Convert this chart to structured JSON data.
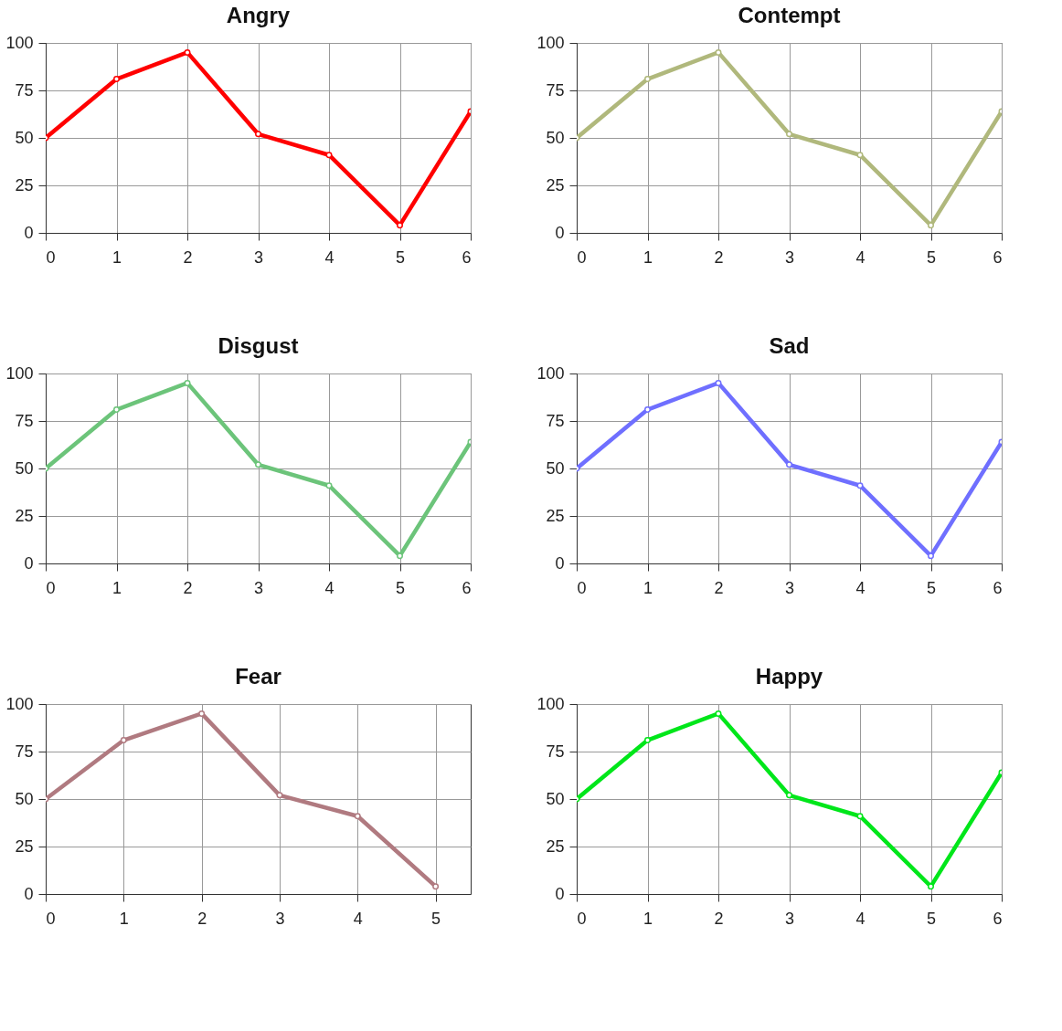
{
  "chart_data": [
    {
      "type": "line",
      "title": "Angry",
      "x": [
        0,
        1,
        2,
        3,
        4,
        5,
        6
      ],
      "xlim": [
        0,
        6
      ],
      "xticks": [
        0,
        1,
        2,
        3,
        4,
        5,
        6
      ],
      "ylim": [
        0,
        100
      ],
      "yticks": [
        0,
        25,
        50,
        75,
        100
      ],
      "grid": true,
      "marker": "circle",
      "series": [
        {
          "color": "#ff0000",
          "values": [
            50,
            81,
            95,
            52,
            41,
            4,
            64
          ]
        }
      ]
    },
    {
      "type": "line",
      "title": "Contempt",
      "x": [
        0,
        1,
        2,
        3,
        4,
        5,
        6
      ],
      "xlim": [
        0,
        6
      ],
      "xticks": [
        0,
        1,
        2,
        3,
        4,
        5,
        6
      ],
      "ylim": [
        0,
        100
      ],
      "yticks": [
        0,
        25,
        50,
        75,
        100
      ],
      "grid": true,
      "marker": "circle",
      "series": [
        {
          "color": "#b0b87c",
          "values": [
            50,
            81,
            95,
            52,
            41,
            4,
            64
          ]
        }
      ]
    },
    {
      "type": "line",
      "title": "Disgust",
      "x": [
        0,
        1,
        2,
        3,
        4,
        5,
        6
      ],
      "xlim": [
        0,
        6
      ],
      "xticks": [
        0,
        1,
        2,
        3,
        4,
        5,
        6
      ],
      "ylim": [
        0,
        100
      ],
      "yticks": [
        0,
        25,
        50,
        75,
        100
      ],
      "grid": true,
      "marker": "circle",
      "series": [
        {
          "color": "#6cc47a",
          "values": [
            50,
            81,
            95,
            52,
            41,
            4,
            64
          ]
        }
      ]
    },
    {
      "type": "line",
      "title": "Sad",
      "x": [
        0,
        1,
        2,
        3,
        4,
        5,
        6
      ],
      "xlim": [
        0,
        6
      ],
      "xticks": [
        0,
        1,
        2,
        3,
        4,
        5,
        6
      ],
      "ylim": [
        0,
        100
      ],
      "yticks": [
        0,
        25,
        50,
        75,
        100
      ],
      "grid": true,
      "marker": "circle",
      "series": [
        {
          "color": "#6f6fff",
          "values": [
            50,
            81,
            95,
            52,
            41,
            4,
            64
          ]
        }
      ]
    },
    {
      "type": "line",
      "title": "Fear",
      "x": [
        0,
        1,
        2,
        3,
        4,
        5
      ],
      "xlim": [
        0,
        5.45
      ],
      "xticks": [
        0,
        1,
        2,
        3,
        4,
        5
      ],
      "ylim": [
        0,
        100
      ],
      "yticks": [
        0,
        25,
        50,
        75,
        100
      ],
      "grid": true,
      "marker": "circle",
      "series": [
        {
          "color": "#b07a80",
          "values": [
            50,
            81,
            95,
            52,
            41,
            4
          ]
        }
      ]
    },
    {
      "type": "line",
      "title": "Happy",
      "x": [
        0,
        1,
        2,
        3,
        4,
        5,
        6
      ],
      "xlim": [
        0,
        6
      ],
      "xticks": [
        0,
        1,
        2,
        3,
        4,
        5,
        6
      ],
      "ylim": [
        0,
        100
      ],
      "yticks": [
        0,
        25,
        50,
        75,
        100
      ],
      "grid": true,
      "marker": "circle",
      "series": [
        {
          "color": "#00e61a",
          "values": [
            50,
            81,
            95,
            52,
            41,
            4,
            64
          ]
        }
      ]
    }
  ]
}
